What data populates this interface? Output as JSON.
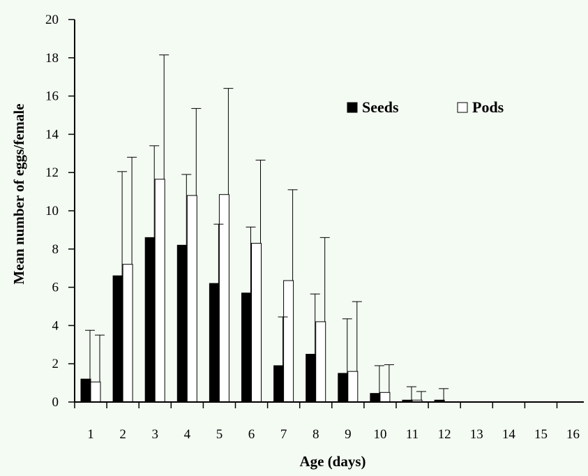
{
  "chart_data": {
    "type": "bar",
    "title": "",
    "xlabel": "Age (days)",
    "ylabel": "Mean number of eggs/female",
    "ylim": [
      0,
      20
    ],
    "yticks": [
      0,
      2,
      4,
      6,
      8,
      10,
      12,
      14,
      16,
      18,
      20
    ],
    "categories": [
      "1",
      "2",
      "3",
      "4",
      "5",
      "6",
      "7",
      "8",
      "9",
      "10",
      "11",
      "12",
      "13",
      "14",
      "15",
      "16"
    ],
    "series": [
      {
        "name": "Seeds",
        "color": "#000000",
        "values": [
          1.2,
          6.6,
          8.6,
          8.2,
          6.2,
          5.7,
          1.9,
          2.5,
          1.5,
          0.45,
          0.1,
          0.1,
          0,
          0,
          0,
          0
        ],
        "error": [
          2.55,
          5.45,
          4.8,
          3.7,
          3.1,
          3.45,
          2.55,
          3.15,
          2.85,
          1.45,
          0.7,
          0.6,
          0,
          0,
          0,
          0
        ]
      },
      {
        "name": "Pods",
        "color": "#ffffff",
        "values": [
          1.05,
          7.2,
          11.65,
          10.8,
          10.85,
          8.3,
          6.35,
          4.2,
          1.6,
          0.5,
          0.1,
          0,
          0,
          0,
          0,
          0
        ],
        "error": [
          2.45,
          5.6,
          6.5,
          4.55,
          5.55,
          4.35,
          4.75,
          4.4,
          3.65,
          1.45,
          0.45,
          0,
          0,
          0,
          0,
          0
        ]
      }
    ],
    "legend": {
      "position": "top-right"
    },
    "grid": false
  }
}
